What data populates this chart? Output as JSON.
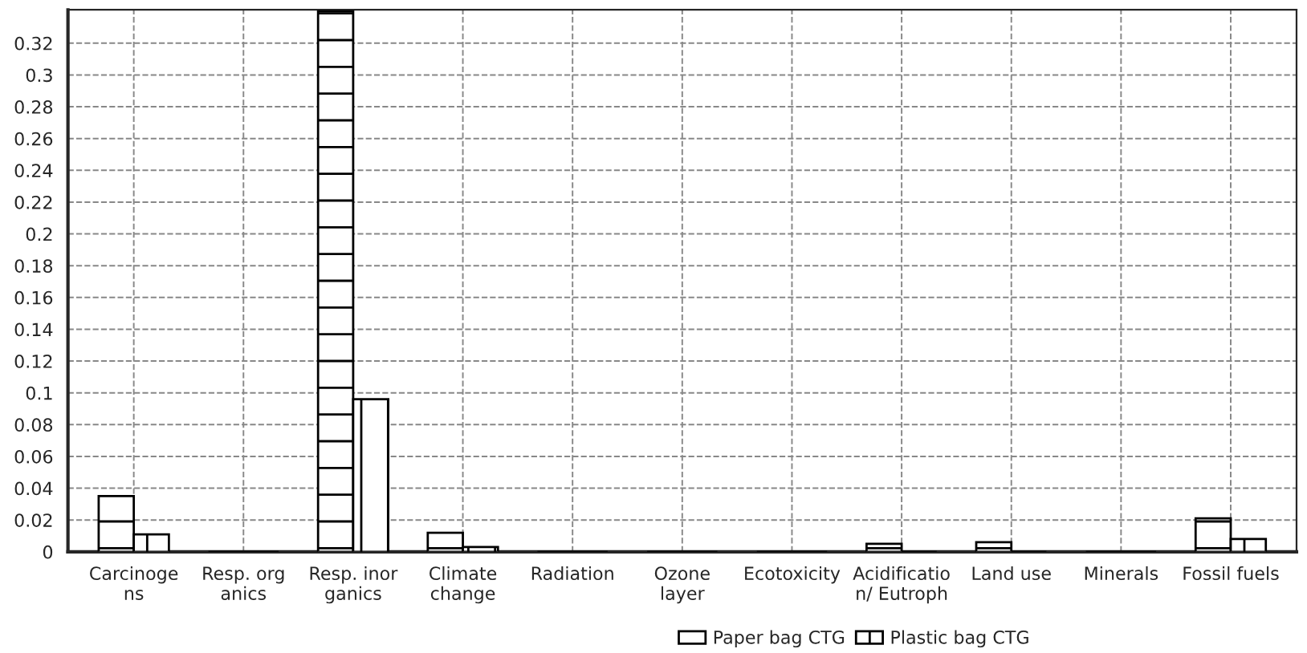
{
  "chart_data": {
    "type": "bar",
    "categories": [
      "Carcinoge\nns",
      "Resp. org\nanics",
      "Resp. inor\nganics",
      "Climate\nchange",
      "Radiation",
      "Ozone\nlayer",
      "Ecotoxicity",
      "Acidificatio\nn/ Eutroph",
      "Land use",
      "Minerals",
      "Fossil fuels"
    ],
    "series": [
      {
        "name": "Paper bag CTG",
        "color": "#000000",
        "values": [
          0.035,
          0,
          0.34,
          0.012,
          0,
          0,
          0,
          0.005,
          0.006,
          0,
          0.021
        ]
      },
      {
        "name": "Plastic bag CTG",
        "color": "#000000",
        "values": [
          0.011,
          0,
          0.096,
          0.003,
          0,
          0,
          0,
          0,
          0,
          0,
          0.008
        ]
      }
    ],
    "ylim": [
      0,
      0.341
    ],
    "yticks": [
      0,
      0.02,
      0.04,
      0.06,
      0.08,
      0.1,
      0.12,
      0.14,
      0.16,
      0.18,
      0.2,
      0.22,
      0.24,
      0.26,
      0.28,
      0.3,
      0.32
    ],
    "grid": true,
    "legend": "bottom"
  }
}
